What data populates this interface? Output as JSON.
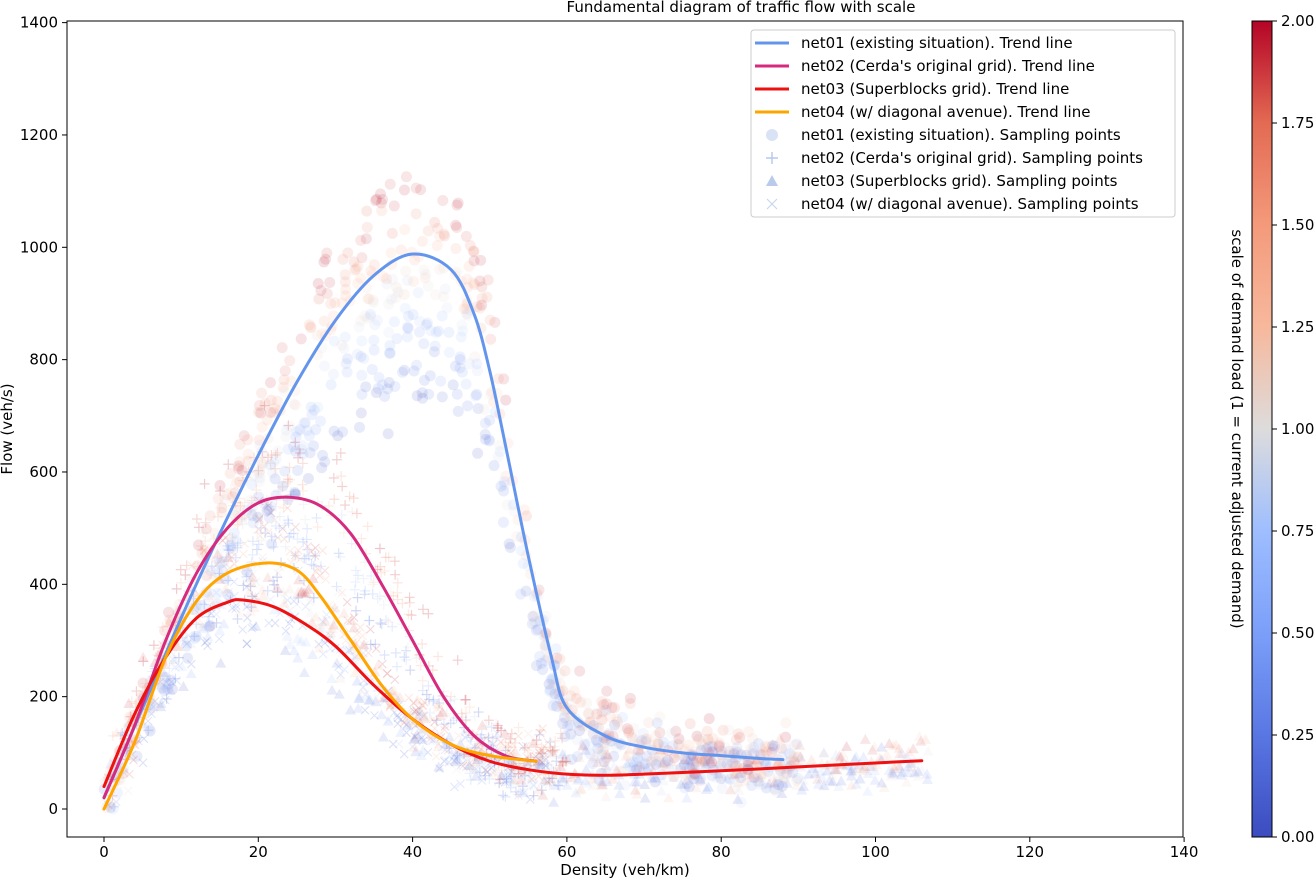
{
  "chart_data": {
    "type": "scatter",
    "title": "Fundamental diagram of traffic flow with scale",
    "xlabel": "Density (veh/km)",
    "ylabel": "Flow (veh/s)",
    "xlim": [
      -5,
      140
    ],
    "ylim": [
      -50,
      1400
    ],
    "x_ticks": [
      0,
      20,
      40,
      60,
      80,
      100,
      120,
      140
    ],
    "y_ticks": [
      0,
      200,
      400,
      600,
      800,
      1000,
      1200,
      1400
    ],
    "grid": false,
    "legend_position": "top-right",
    "trend_lines": [
      {
        "name": "net01 (existing situation). Trend line",
        "color": "#6495ed",
        "x": [
          0,
          5,
          10,
          15,
          20,
          25,
          30,
          35,
          40,
          45,
          48,
          50,
          52,
          55,
          58,
          60,
          65,
          70,
          75,
          80,
          85,
          88
        ],
        "y": [
          20,
          180,
          340,
          490,
          630,
          760,
          870,
          950,
          988,
          960,
          880,
          780,
          650,
          450,
          270,
          180,
          130,
          110,
          100,
          95,
          90,
          88
        ]
      },
      {
        "name": "net02 (Cerda's original grid). Trend line",
        "color": "#d62a7e",
        "x": [
          0,
          4,
          8,
          12,
          16,
          20,
          24,
          28,
          32,
          36,
          40,
          44,
          48,
          52,
          56
        ],
        "y": [
          20,
          150,
          300,
          420,
          500,
          545,
          555,
          540,
          490,
          400,
          300,
          200,
          130,
          95,
          85
        ]
      },
      {
        "name": "net03 (Superblocks grid). Trend line",
        "color": "#ee1111",
        "x": [
          0,
          4,
          8,
          12,
          16,
          18,
          22,
          26,
          30,
          35,
          40,
          45,
          50,
          55,
          60,
          65,
          70,
          80,
          90,
          100,
          106
        ],
        "y": [
          40,
          170,
          270,
          340,
          368,
          372,
          360,
          330,
          290,
          220,
          160,
          115,
          85,
          70,
          62,
          60,
          62,
          68,
          75,
          82,
          86
        ]
      },
      {
        "name": "net04 (w/ diagonal avenue). Trend line",
        "color": "#ffa500",
        "x": [
          0,
          4,
          8,
          12,
          16,
          21,
          25,
          28,
          32,
          36,
          40,
          45,
          50,
          56
        ],
        "y": [
          0,
          120,
          270,
          370,
          420,
          438,
          425,
          380,
          300,
          220,
          160,
          115,
          95,
          85
        ]
      }
    ],
    "scatter_series": [
      {
        "name": "net01 (existing situation). Sampling points",
        "marker": "circle",
        "legend_color": "#b6c8ee"
      },
      {
        "name": "net02 (Cerda's original grid). Sampling points",
        "marker": "plus",
        "legend_color": "#b6c8ee"
      },
      {
        "name": "net03 (Superblocks grid). Sampling points",
        "marker": "triangle",
        "legend_color": "#a8bde8"
      },
      {
        "name": "net04 (w/ diagonal avenue). Sampling points",
        "marker": "x",
        "legend_color": "#c8d6f2"
      }
    ],
    "colorbar": {
      "label": "scale of demand load (1 = current adjusted demand)",
      "colormap": "coolwarm",
      "range": [
        0,
        2
      ],
      "ticks": [
        "0.00",
        "0.25",
        "0.50",
        "0.75",
        "1.00",
        "1.25",
        "1.50",
        "1.75",
        "2.00"
      ]
    }
  }
}
